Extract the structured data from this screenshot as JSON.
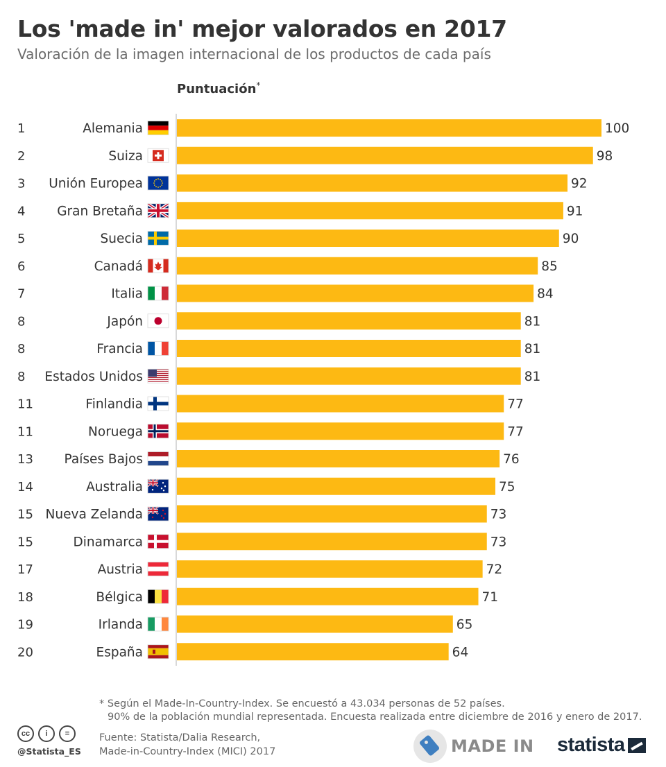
{
  "header": {
    "title": "Los 'made in' mejor valorados en 2017",
    "subtitle": "Valoración de la imagen internacional de los productos de cada país"
  },
  "chart_data": {
    "type": "bar",
    "orientation": "horizontal",
    "title": "Los 'made in' mejor valorados en 2017",
    "column_header": "Puntuación",
    "column_header_mark": "*",
    "xlim": [
      0,
      100
    ],
    "bar_color": "#fdb913",
    "rows": [
      {
        "rank": "1",
        "country": "Alemania",
        "flag": "de",
        "value": 100
      },
      {
        "rank": "2",
        "country": "Suiza",
        "flag": "ch",
        "value": 98
      },
      {
        "rank": "3",
        "country": "Unión Europea",
        "flag": "eu",
        "value": 92
      },
      {
        "rank": "4",
        "country": "Gran Bretaña",
        "flag": "gb",
        "value": 91
      },
      {
        "rank": "5",
        "country": "Suecia",
        "flag": "se",
        "value": 90
      },
      {
        "rank": "6",
        "country": "Canadá",
        "flag": "ca",
        "value": 85
      },
      {
        "rank": "7",
        "country": "Italia",
        "flag": "it",
        "value": 84
      },
      {
        "rank": "8",
        "country": "Japón",
        "flag": "jp",
        "value": 81
      },
      {
        "rank": "8",
        "country": "Francia",
        "flag": "fr",
        "value": 81
      },
      {
        "rank": "8",
        "country": "Estados Unidos",
        "flag": "us",
        "value": 81
      },
      {
        "rank": "11",
        "country": "Finlandia",
        "flag": "fi",
        "value": 77
      },
      {
        "rank": "11",
        "country": "Noruega",
        "flag": "no",
        "value": 77
      },
      {
        "rank": "13",
        "country": "Países Bajos",
        "flag": "nl",
        "value": 76
      },
      {
        "rank": "14",
        "country": "Australia",
        "flag": "au",
        "value": 75
      },
      {
        "rank": "15",
        "country": "Nueva Zelanda",
        "flag": "nz",
        "value": 73
      },
      {
        "rank": "15",
        "country": "Dinamarca",
        "flag": "dk",
        "value": 73
      },
      {
        "rank": "17",
        "country": "Austria",
        "flag": "at",
        "value": 72
      },
      {
        "rank": "18",
        "country": "Bélgica",
        "flag": "be",
        "value": 71
      },
      {
        "rank": "19",
        "country": "Irlanda",
        "flag": "ie",
        "value": 65
      },
      {
        "rank": "20",
        "country": "España",
        "flag": "es",
        "value": 64
      }
    ]
  },
  "footer": {
    "footnote_line1": "* Según el Made-In-Country-Index. Se encuestó a 43.034 personas de 52 países.",
    "footnote_line2": "90% de la población mundial representada. Encuesta realizada entre diciembre de 2016 y enero de 2017.",
    "source_line1": "Fuente: Statista/Dalia Research,",
    "source_line2": "Made-in-Country-Index (MICI) 2017",
    "handle": "@Statista_ES",
    "cc_icons": [
      "cc-icon",
      "by-icon",
      "nd-icon"
    ],
    "cc_labels": [
      "cc",
      "i",
      "="
    ],
    "partner_logo": "MADE IN",
    "brand_logo": "statista"
  }
}
